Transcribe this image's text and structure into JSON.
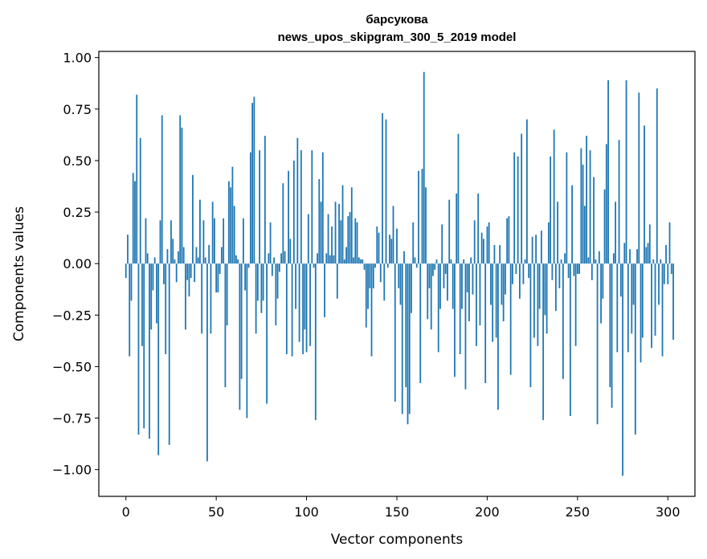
{
  "chart_data": {
    "type": "bar",
    "title": "барсукова",
    "subtitle": "news_upos_skipgram_300_5_2019 model",
    "xlabel": "Vector components",
    "ylabel": "Components values",
    "xlim": [
      -15,
      315
    ],
    "ylim": [
      -1.13,
      1.03
    ],
    "xticks": [
      0,
      50,
      100,
      150,
      200,
      250,
      300
    ],
    "yticks": [
      -1.0,
      -0.75,
      -0.5,
      -0.25,
      0.0,
      0.25,
      0.5,
      0.75,
      1.0
    ],
    "xtick_labels": [
      "0",
      "50",
      "100",
      "150",
      "200",
      "250",
      "300"
    ],
    "ytick_labels": [
      "−1.00",
      "−0.75",
      "−0.50",
      "−0.25",
      "0.00",
      "0.25",
      "0.50",
      "0.75",
      "1.00"
    ],
    "grid": false,
    "bar_color": "#1f77b4",
    "values": [
      -0.07,
      0.14,
      -0.45,
      -0.18,
      0.44,
      0.4,
      0.82,
      -0.83,
      0.61,
      -0.4,
      -0.8,
      0.22,
      0.05,
      -0.85,
      -0.32,
      -0.13,
      0.03,
      -0.29,
      -0.93,
      0.21,
      0.72,
      -0.1,
      -0.44,
      0.07,
      -0.88,
      0.21,
      0.12,
      0.02,
      -0.09,
      0.06,
      0.72,
      0.66,
      0.08,
      -0.32,
      -0.08,
      -0.16,
      -0.07,
      0.43,
      -0.09,
      0.08,
      0.03,
      0.31,
      -0.34,
      0.21,
      0.03,
      -0.96,
      0.09,
      -0.34,
      0.3,
      0.22,
      -0.14,
      -0.14,
      -0.05,
      0.08,
      0.22,
      -0.6,
      -0.3,
      0.4,
      0.37,
      0.47,
      0.28,
      0.04,
      0.02,
      -0.71,
      -0.56,
      0.22,
      -0.13,
      -0.75,
      -0.02,
      0.54,
      0.78,
      0.81,
      -0.34,
      -0.18,
      0.55,
      -0.24,
      -0.18,
      0.62,
      -0.68,
      0.05,
      0.2,
      -0.06,
      0.03,
      -0.3,
      -0.17,
      -0.04,
      0.05,
      0.39,
      0.06,
      -0.44,
      0.45,
      0.12,
      -0.45,
      0.5,
      -0.22,
      0.61,
      -0.38,
      0.55,
      -0.44,
      -0.32,
      -0.43,
      0.24,
      -0.4,
      0.55,
      -0.02,
      -0.76,
      0.05,
      0.41,
      0.3,
      0.54,
      -0.26,
      0.05,
      0.24,
      0.04,
      0.18,
      0.04,
      0.3,
      -0.17,
      0.29,
      0.21,
      0.38,
      0.02,
      0.08,
      0.23,
      0.25,
      0.37,
      0.03,
      0.22,
      0.2,
      0.03,
      0.02,
      0.02,
      -0.03,
      -0.31,
      -0.22,
      -0.12,
      -0.45,
      -0.12,
      -0.02,
      0.18,
      0.15,
      -0.09,
      0.73,
      -0.18,
      0.7,
      -0.02,
      0.14,
      0.12,
      0.28,
      -0.67,
      0.17,
      -0.12,
      -0.2,
      -0.73,
      0.06,
      -0.6,
      -0.78,
      -0.73,
      -0.24,
      0.2,
      0.03,
      -0.02,
      0.45,
      -0.58,
      0.46,
      0.93,
      0.37,
      -0.27,
      -0.12,
      -0.32,
      -0.06,
      -0.03,
      0.02,
      -0.43,
      -0.22,
      0.19,
      -0.12,
      -0.05,
      -0.18,
      0.31,
      0.02,
      -0.22,
      -0.55,
      0.34,
      0.63,
      -0.44,
      -0.22,
      0.02,
      -0.61,
      -0.14,
      -0.28,
      0.03,
      -0.15,
      0.21,
      -0.4,
      0.34,
      -0.3,
      0.15,
      0.12,
      -0.58,
      0.18,
      0.2,
      -0.2,
      -0.38,
      0.09,
      -0.36,
      -0.71,
      0.09,
      -0.2,
      -0.28,
      -0.15,
      0.22,
      0.23,
      -0.54,
      -0.1,
      0.54,
      -0.05,
      0.52,
      -0.17,
      0.63,
      -0.1,
      0.02,
      0.7,
      -0.07,
      -0.6,
      0.13,
      -0.36,
      0.14,
      -0.4,
      -0.22,
      0.16,
      -0.76,
      -0.25,
      -0.34,
      0.2,
      0.52,
      -0.08,
      0.65,
      -0.23,
      0.3,
      -0.12,
      0.02,
      -0.56,
      0.05,
      0.54,
      -0.07,
      -0.74,
      0.38,
      -0.06,
      -0.4,
      -0.05,
      -0.05,
      0.56,
      0.48,
      0.28,
      0.62,
      0.03,
      0.55,
      -0.08,
      0.42,
      0.02,
      -0.78,
      0.06,
      -0.29,
      -0.17,
      0.36,
      0.58,
      0.89,
      -0.6,
      -0.7,
      0.05,
      0.3,
      -0.43,
      0.6,
      -0.16,
      -1.03,
      0.1,
      0.89,
      -0.43,
      0.07,
      -0.34,
      -0.2,
      -0.83,
      0.07,
      0.83,
      -0.48,
      -0.36,
      0.67,
      0.08,
      0.1,
      0.19,
      -0.41,
      0.02,
      -0.35,
      0.85,
      -0.2,
      0.02,
      -0.45,
      -0.1,
      0.09,
      -0.1,
      0.2,
      -0.05,
      -0.37
    ]
  }
}
